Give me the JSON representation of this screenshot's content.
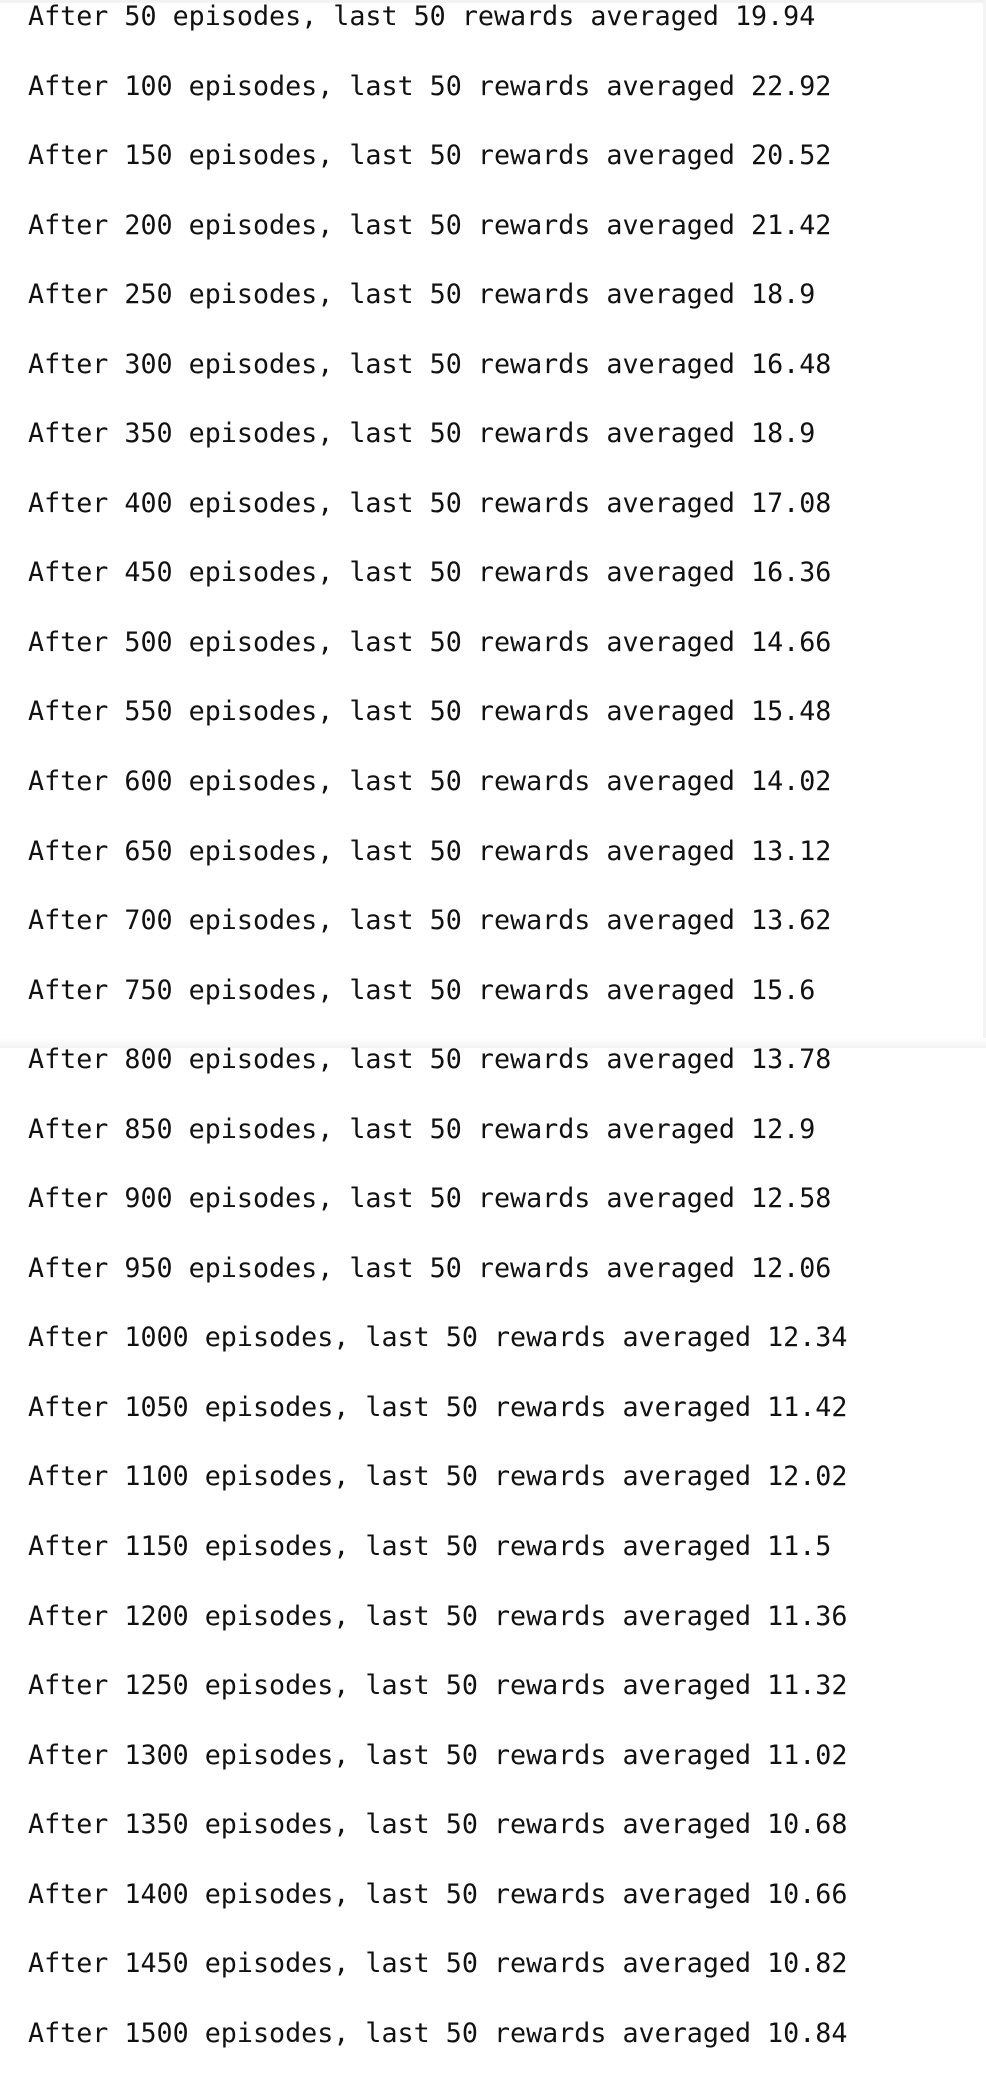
{
  "console": {
    "lines": [
      "After 50 episodes, last 50 rewards averaged 19.94",
      "After 100 episodes, last 50 rewards averaged 22.92",
      "After 150 episodes, last 50 rewards averaged 20.52",
      "After 200 episodes, last 50 rewards averaged 21.42",
      "After 250 episodes, last 50 rewards averaged 18.9",
      "After 300 episodes, last 50 rewards averaged 16.48",
      "After 350 episodes, last 50 rewards averaged 18.9",
      "After 400 episodes, last 50 rewards averaged 17.08",
      "After 450 episodes, last 50 rewards averaged 16.36",
      "After 500 episodes, last 50 rewards averaged 14.66",
      "After 550 episodes, last 50 rewards averaged 15.48",
      "After 600 episodes, last 50 rewards averaged 14.02",
      "After 650 episodes, last 50 rewards averaged 13.12",
      "After 700 episodes, last 50 rewards averaged 13.62",
      "After 750 episodes, last 50 rewards averaged 15.6",
      "After 800 episodes, last 50 rewards averaged 13.78",
      "After 850 episodes, last 50 rewards averaged 12.9",
      "After 900 episodes, last 50 rewards averaged 12.58",
      "After 950 episodes, last 50 rewards averaged 12.06",
      "After 1000 episodes, last 50 rewards averaged 12.34",
      "After 1050 episodes, last 50 rewards averaged 11.42",
      "After 1100 episodes, last 50 rewards averaged 12.02",
      "After 1150 episodes, last 50 rewards averaged 11.5",
      "After 1200 episodes, last 50 rewards averaged 11.36",
      "After 1250 episodes, last 50 rewards averaged 11.32",
      "After 1300 episodes, last 50 rewards averaged 11.02",
      "After 1350 episodes, last 50 rewards averaged 10.68",
      "After 1400 episodes, last 50 rewards averaged 10.66",
      "After 1450 episodes, last 50 rewards averaged 10.82",
      "After 1500 episodes, last 50 rewards averaged 10.84"
    ]
  }
}
